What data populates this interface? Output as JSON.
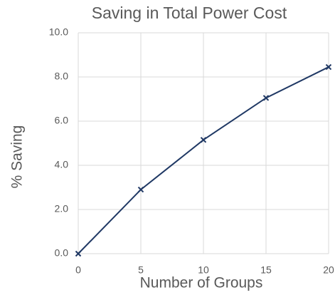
{
  "chart_data": {
    "type": "line",
    "title": "Saving in Total Power Cost",
    "x_label": "Number of Groups",
    "y_label": "% Saving",
    "x": [
      0,
      5,
      10,
      15,
      20
    ],
    "series": [
      {
        "name": "% Saving",
        "color": "#1f3864",
        "values": [
          0,
          2.9,
          5.15,
          7.05,
          8.45
        ]
      }
    ],
    "xlim": [
      0,
      20
    ],
    "xticks": [
      0,
      5,
      10,
      15,
      20
    ],
    "ylim": [
      0,
      10
    ],
    "yticks": [
      {
        "value": 0,
        "label": "0.0"
      },
      {
        "value": 2,
        "label": "2.0"
      },
      {
        "value": 4,
        "label": "4.0"
      },
      {
        "value": 6,
        "label": "6.0"
      },
      {
        "value": 8,
        "label": "8.0"
      },
      {
        "value": 10,
        "label": "10.0"
      }
    ],
    "grid": true,
    "marker": "x"
  }
}
